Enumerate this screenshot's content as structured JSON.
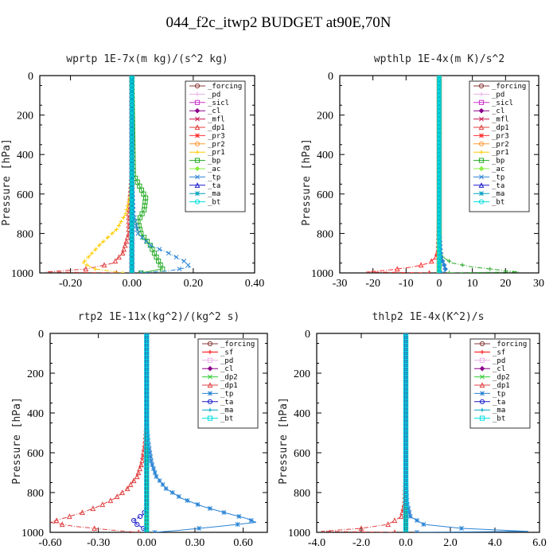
{
  "title": "044_f2c_itwp2  BUDGET at90E,70N",
  "colors": {
    "forcing": "#8b3a3a",
    "sf": "#ff0000",
    "pd": "#e8b0e8",
    "sicl": "#cc33cc",
    "cl": "#8b008b",
    "mfl": "#c8164e",
    "dp1": "#e04040",
    "pr3": "#ff3030",
    "pr2": "#ff9933",
    "pr1": "#ffcc00",
    "bp": "#22aa22",
    "ac": "#88ee44",
    "tp": "#2a84d4",
    "ta": "#1a1acc",
    "ma": "#00a0c0",
    "bt": "#00dddd",
    "dp2": "#33cc33"
  },
  "chart_data": [
    {
      "type": "line",
      "title": "wprtp   1E-7x(m kg)/(s^2 kg)",
      "ylabel": "Pressure [hPa]",
      "xlim": [
        -0.3,
        0.4
      ],
      "ylim": [
        1000,
        0
      ],
      "xticks": [
        "-0.20",
        "0.00",
        "0.20",
        "0.40"
      ],
      "yticks": [
        "0",
        "200",
        "400",
        "600",
        "800",
        "1000"
      ],
      "legend_position": "top-right",
      "series": [
        {
          "name": "_forcing",
          "color_key": "forcing",
          "pressure": [
            0,
            100,
            200,
            300,
            400,
            500,
            600,
            700,
            800,
            900,
            1000
          ],
          "values": [
            0,
            0,
            0,
            0,
            0,
            0,
            0,
            0,
            0,
            0,
            0
          ]
        },
        {
          "name": "_pd",
          "color_key": "pd",
          "pressure": [
            0,
            500,
            1000
          ],
          "values": [
            0,
            0,
            0
          ]
        },
        {
          "name": "_sicl",
          "color_key": "sicl",
          "pressure": [
            0,
            500,
            1000
          ],
          "values": [
            0,
            0,
            0
          ]
        },
        {
          "name": "_cl",
          "color_key": "cl",
          "pressure": [
            0,
            500,
            1000
          ],
          "values": [
            0,
            0,
            0
          ]
        },
        {
          "name": "_mfl",
          "color_key": "mfl",
          "pressure": [
            0,
            500,
            1000
          ],
          "values": [
            0,
            0,
            0
          ]
        },
        {
          "name": "_dp1",
          "color_key": "dp1",
          "pressure": [
            0,
            500,
            600,
            700,
            800,
            850,
            900,
            950,
            980,
            995,
            1000
          ],
          "values": [
            0,
            0,
            -0.005,
            -0.01,
            -0.01,
            -0.02,
            -0.03,
            -0.06,
            -0.15,
            -0.28,
            -0.05
          ]
        },
        {
          "name": "_pr3",
          "color_key": "pr3",
          "pressure": [
            0,
            500,
            1000
          ],
          "values": [
            0,
            0,
            0
          ]
        },
        {
          "name": "_pr2",
          "color_key": "pr2",
          "pressure": [
            0,
            500,
            1000
          ],
          "values": [
            0,
            0,
            0
          ]
        },
        {
          "name": "_pr1",
          "color_key": "pr1",
          "pressure": [
            0,
            500,
            600,
            700,
            780,
            850,
            900,
            950,
            980,
            1000
          ],
          "values": [
            0,
            0,
            -0.005,
            -0.02,
            -0.05,
            -0.1,
            -0.13,
            -0.16,
            -0.12,
            -0.03
          ]
        },
        {
          "name": "_bp",
          "color_key": "bp",
          "pressure": [
            0,
            500,
            560,
            620,
            680,
            740,
            800,
            860,
            920,
            980,
            1000
          ],
          "values": [
            0,
            0.005,
            0.025,
            0.045,
            0.04,
            0.02,
            0.03,
            0.06,
            0.08,
            0.1,
            0.03
          ]
        },
        {
          "name": "_ac",
          "color_key": "ac",
          "pressure": [
            0,
            500,
            1000
          ],
          "values": [
            0,
            0,
            0
          ]
        },
        {
          "name": "_tp",
          "color_key": "tp",
          "pressure": [
            0,
            500,
            700,
            800,
            860,
            900,
            940,
            970,
            990,
            1000
          ],
          "values": [
            0,
            0,
            0.005,
            0.02,
            0.06,
            0.12,
            0.17,
            0.19,
            0.12,
            0.03
          ]
        },
        {
          "name": "_ta",
          "color_key": "ta",
          "pressure": [
            0,
            500,
            1000
          ],
          "values": [
            0,
            0,
            0
          ]
        },
        {
          "name": "_ma",
          "color_key": "ma",
          "pressure": [
            0,
            500,
            1000
          ],
          "values": [
            0,
            0,
            0
          ]
        },
        {
          "name": "_bt",
          "color_key": "bt",
          "pressure": [
            0,
            500,
            1000
          ],
          "values": [
            0,
            0,
            0
          ]
        }
      ]
    },
    {
      "type": "line",
      "title": "wpthlp   1E-4x(m K)/s^2",
      "ylabel": "Pressure [hPa]",
      "xlim": [
        -30,
        30
      ],
      "ylim": [
        1000,
        0
      ],
      "xticks": [
        "-30",
        "-20",
        "-10",
        "0",
        "10",
        "20",
        "30"
      ],
      "yticks": [
        "0",
        "200",
        "400",
        "600",
        "800",
        "1000"
      ],
      "legend_position": "top-right",
      "series": [
        {
          "name": "_forcing",
          "color_key": "forcing",
          "pressure": [
            0,
            500,
            1000
          ],
          "values": [
            0,
            0,
            0
          ]
        },
        {
          "name": "_sicl",
          "color_key": "sicl",
          "pressure": [
            0,
            500,
            1000
          ],
          "values": [
            0,
            0,
            0
          ]
        },
        {
          "name": "_cl",
          "color_key": "cl",
          "pressure": [
            0,
            500,
            1000
          ],
          "values": [
            0,
            0,
            0
          ]
        },
        {
          "name": "_mfl",
          "color_key": "mfl",
          "pressure": [
            0,
            500,
            1000
          ],
          "values": [
            0,
            0,
            0
          ]
        },
        {
          "name": "_dp1",
          "color_key": "dp1",
          "pressure": [
            0,
            500,
            1000
          ],
          "values": [
            0,
            0,
            0
          ]
        },
        {
          "name": "_pr3",
          "color_key": "pr3",
          "pressure": [
            0,
            700,
            880,
            920,
            950,
            970,
            985,
            995,
            1000
          ],
          "values": [
            0,
            0,
            -0.3,
            -1,
            -3,
            -8,
            -15,
            -22,
            -3
          ]
        },
        {
          "name": "_pr2",
          "color_key": "pr2",
          "pressure": [
            0,
            500,
            1000
          ],
          "values": [
            0,
            0,
            0
          ]
        },
        {
          "name": "_pr1",
          "color_key": "pr1",
          "pressure": [
            0,
            500,
            1000
          ],
          "values": [
            0,
            0,
            0
          ]
        },
        {
          "name": "_bp",
          "color_key": "bp",
          "pressure": [
            0,
            700,
            880,
            920,
            950,
            970,
            985,
            995,
            1000
          ],
          "values": [
            0,
            0,
            0.3,
            1,
            4,
            10,
            18,
            24,
            3
          ]
        },
        {
          "name": "_ac",
          "color_key": "ac",
          "pressure": [
            0,
            500,
            1000
          ],
          "values": [
            0,
            0,
            0
          ]
        },
        {
          "name": "_tp",
          "color_key": "tp",
          "pressure": [
            0,
            800,
            920,
            960,
            990,
            1000
          ],
          "values": [
            0,
            0,
            0.5,
            1.5,
            2,
            0.5
          ]
        },
        {
          "name": "_ta",
          "color_key": "ta",
          "pressure": [
            0,
            500,
            1000
          ],
          "values": [
            0,
            0,
            0
          ]
        },
        {
          "name": "_ma",
          "color_key": "ma",
          "pressure": [
            0,
            500,
            1000
          ],
          "values": [
            0,
            0,
            0
          ]
        },
        {
          "name": "_bt",
          "color_key": "bt",
          "pressure": [
            0,
            500,
            1000
          ],
          "values": [
            0,
            0,
            0
          ]
        }
      ],
      "legend_entries": [
        "_forcing",
        "_pd",
        "_sicl",
        "_cl",
        "_mfl",
        "_dp1",
        "_pr3",
        "_pr2",
        "_pr1",
        "_bp",
        "_ac",
        "_tp",
        "_ta",
        "_ma",
        "_bt"
      ]
    },
    {
      "type": "line",
      "title": "rtp2   1E-11x(kg^2)/(kg^2 s)",
      "ylabel": "Pressure [hPa]",
      "xlim": [
        -0.6,
        0.75
      ],
      "ylim": [
        1000,
        0
      ],
      "xticks": [
        "-0.60",
        "-0.30",
        "0.00",
        "0.30",
        "0.60"
      ],
      "yticks": [
        "0",
        "200",
        "400",
        "600",
        "800",
        "1000"
      ],
      "legend_position": "top-right",
      "series": [
        {
          "name": "_forcing",
          "color_key": "forcing",
          "pressure": [
            0,
            500,
            1000
          ],
          "values": [
            0,
            0,
            0
          ]
        },
        {
          "name": "_sf",
          "color_key": "sf",
          "pressure": [
            0,
            100,
            200,
            300,
            400,
            500,
            600,
            700,
            800,
            900,
            1000
          ],
          "values": [
            0,
            0,
            0,
            0,
            0,
            0,
            0,
            0,
            0,
            0,
            0
          ]
        },
        {
          "name": "_pd",
          "color_key": "pd",
          "pressure": [
            0,
            500,
            1000
          ],
          "values": [
            0,
            0,
            0
          ]
        },
        {
          "name": "_cl",
          "color_key": "cl",
          "pressure": [
            0,
            500,
            1000
          ],
          "values": [
            0,
            0,
            0
          ]
        },
        {
          "name": "_dp2",
          "color_key": "dp2",
          "pressure": [
            0,
            500,
            1000
          ],
          "values": [
            0,
            0,
            0
          ]
        },
        {
          "name": "_dp1",
          "color_key": "dp1",
          "pressure": [
            0,
            450,
            550,
            650,
            720,
            780,
            830,
            870,
            900,
            930,
            950,
            970,
            990,
            1000
          ],
          "values": [
            0,
            0,
            -0.01,
            -0.03,
            -0.06,
            -0.12,
            -0.2,
            -0.3,
            -0.4,
            -0.52,
            -0.6,
            -0.45,
            -0.2,
            -0.05
          ]
        },
        {
          "name": "_tp",
          "color_key": "tp",
          "pressure": [
            0,
            450,
            550,
            650,
            720,
            780,
            830,
            870,
            900,
            930,
            950,
            970,
            990,
            1000
          ],
          "values": [
            0,
            0,
            0.01,
            0.03,
            0.06,
            0.12,
            0.22,
            0.35,
            0.48,
            0.62,
            0.68,
            0.45,
            0.2,
            0.05
          ]
        },
        {
          "name": "_ta",
          "color_key": "ta",
          "pressure": [
            0,
            880,
            910,
            940,
            960,
            980,
            1000
          ],
          "values": [
            0,
            0,
            -0.02,
            -0.08,
            -0.06,
            -0.02,
            0
          ]
        },
        {
          "name": "_ma",
          "color_key": "ma",
          "pressure": [
            0,
            500,
            1000
          ],
          "values": [
            0,
            0,
            0
          ]
        },
        {
          "name": "_bt",
          "color_key": "bt",
          "pressure": [
            0,
            500,
            1000
          ],
          "values": [
            0,
            0,
            0
          ]
        }
      ]
    },
    {
      "type": "line",
      "title": "thlp2   1E-4x(K^2)/s",
      "ylabel": "Pressure [hPa]",
      "xlim": [
        -4.0,
        6.0
      ],
      "ylim": [
        1000,
        0
      ],
      "xticks": [
        "-4.0",
        "-2.0",
        "0.0",
        "2.0",
        "4.0",
        "6.0"
      ],
      "yticks": [
        "0",
        "200",
        "400",
        "600",
        "800",
        "1000"
      ],
      "legend_position": "top-right",
      "series": [
        {
          "name": "_forcing",
          "color_key": "forcing",
          "pressure": [
            0,
            500,
            1000
          ],
          "values": [
            0,
            0,
            0
          ]
        },
        {
          "name": "_sf",
          "color_key": "sf",
          "pressure": [
            0,
            100,
            200,
            300,
            400,
            500,
            600,
            700,
            800,
            900,
            1000
          ],
          "values": [
            0,
            0,
            0,
            0,
            0,
            0,
            0,
            0,
            0,
            0,
            0
          ]
        },
        {
          "name": "_pd",
          "color_key": "pd",
          "pressure": [
            0,
            500,
            1000
          ],
          "values": [
            0,
            0,
            0
          ]
        },
        {
          "name": "_cl",
          "color_key": "cl",
          "pressure": [
            0,
            500,
            1000
          ],
          "values": [
            0,
            0,
            0
          ]
        },
        {
          "name": "_dp2",
          "color_key": "dp2",
          "pressure": [
            0,
            500,
            1000
          ],
          "values": [
            0,
            0,
            0
          ]
        },
        {
          "name": "_dp1",
          "color_key": "dp1",
          "pressure": [
            0,
            700,
            850,
            920,
            960,
            980,
            995,
            1000
          ],
          "values": [
            0,
            0,
            -0.05,
            -0.2,
            -0.8,
            -2,
            -3.8,
            -0.5
          ]
        },
        {
          "name": "_tp",
          "color_key": "tp",
          "pressure": [
            0,
            700,
            850,
            920,
            960,
            980,
            995,
            1000
          ],
          "values": [
            0,
            0,
            0.05,
            0.2,
            0.8,
            2.5,
            5.5,
            0.5
          ]
        },
        {
          "name": "_ta",
          "color_key": "ta",
          "pressure": [
            0,
            500,
            1000
          ],
          "values": [
            0,
            0,
            0
          ]
        },
        {
          "name": "_ma",
          "color_key": "ma",
          "pressure": [
            0,
            500,
            1000
          ],
          "values": [
            0,
            0,
            0
          ]
        },
        {
          "name": "_bt",
          "color_key": "bt",
          "pressure": [
            0,
            500,
            1000
          ],
          "values": [
            0,
            0,
            0
          ]
        }
      ]
    }
  ]
}
